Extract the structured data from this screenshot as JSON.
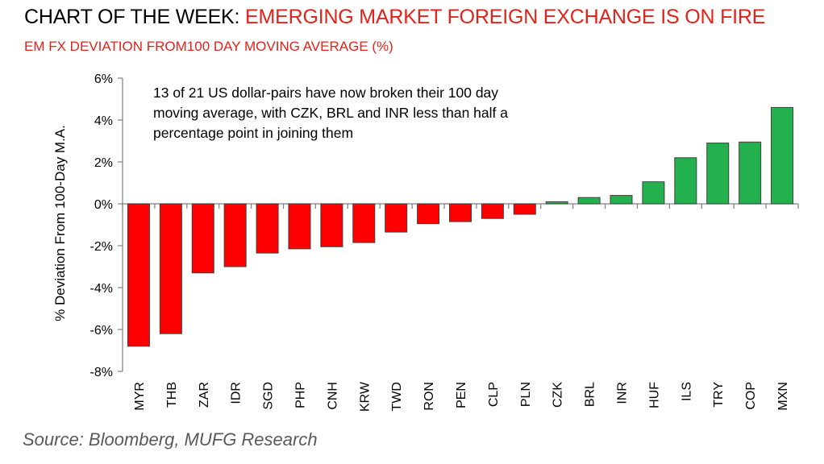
{
  "header": {
    "title_prefix": "CHART OF THE WEEK:",
    "title_main": "EMERGING MARKET FOREIGN EXCHANGE IS ON FIRE",
    "subtitle": "EM FX DEVIATION FROM100 DAY MOVING AVERAGE (%)"
  },
  "footer": {
    "source": "Source: Bloomberg, MUFG Research"
  },
  "chart_data": {
    "type": "bar",
    "categories": [
      "MYR",
      "THB",
      "ZAR",
      "IDR",
      "SGD",
      "PHP",
      "CNH",
      "KRW",
      "TWD",
      "RON",
      "PEN",
      "CLP",
      "PLN",
      "CZK",
      "BRL",
      "INR",
      "HUF",
      "ILS",
      "TRY",
      "COP",
      "MXN"
    ],
    "values": [
      -6.8,
      -6.2,
      -3.3,
      -3.0,
      -2.35,
      -2.15,
      -2.05,
      -1.85,
      -1.35,
      -0.95,
      -0.85,
      -0.7,
      -0.5,
      0.1,
      0.3,
      0.4,
      1.05,
      2.2,
      2.9,
      2.95,
      4.6
    ],
    "ylabel": "% Deviation From 100-Day M.A.",
    "ylim": [
      -8,
      6
    ],
    "yticks": [
      "6%",
      "4%",
      "2%",
      "0%",
      "-2%",
      "-4%",
      "-6%",
      "-8%"
    ],
    "annotation": [
      "13 of 21 US dollar-pairs have now broken their 100 day",
      "moving average, with CZK, BRL and INR less than half a",
      "percentage point in joining them"
    ],
    "colors": {
      "negative": "#ff0000",
      "positive": "#22b14c",
      "outline": "#404040"
    },
    "grid": false
  }
}
